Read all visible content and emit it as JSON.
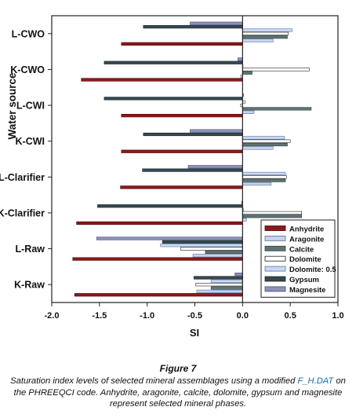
{
  "chart_data": {
    "type": "bar",
    "orientation": "horizontal",
    "categories": [
      "L-CWO",
      "K-CWO",
      "L-CWI",
      "K-CWI",
      "L-Clarifier",
      "K-Clarifier",
      "L-Raw",
      "K-Raw"
    ],
    "series": [
      {
        "name": "Anhydrite",
        "fill": "#8b1a1a",
        "border": "#4a0000",
        "values": [
          -1.27,
          -1.69,
          -1.27,
          -1.27,
          -1.28,
          -1.74,
          -1.78,
          -1.76
        ]
      },
      {
        "name": "Aragonite",
        "fill": "#c6d2ef",
        "border": "#5a6d99",
        "values": [
          0.32,
          -0.02,
          0.12,
          0.32,
          0.3,
          0.04,
          -0.52,
          -0.48
        ]
      },
      {
        "name": "Calcite",
        "fill": "#5f7373",
        "border": "#344545",
        "values": [
          0.47,
          0.1,
          0.72,
          0.47,
          0.45,
          0.62,
          -0.39,
          -0.33
        ]
      },
      {
        "name": "Dolomite",
        "fill": "#ffffff",
        "border": "#222222",
        "values": [
          0.48,
          0.7,
          -0.02,
          0.5,
          0.46,
          0.62,
          -0.65,
          -0.49
        ]
      },
      {
        "name": "Dolomite: 0.5",
        "fill": "#c9d9f2",
        "border": "#5a74a8",
        "values": [
          0.52,
          0.0,
          0.03,
          0.44,
          0.45,
          0.01,
          -0.86,
          -0.33
        ]
      },
      {
        "name": "Gypsum",
        "fill": "#37474f",
        "border": "#1c2a30",
        "values": [
          -1.04,
          -1.45,
          -1.45,
          -1.04,
          -1.05,
          -1.52,
          -0.84,
          -0.51
        ]
      },
      {
        "name": "Magnesite",
        "fill": "#8b91b8",
        "border": "#4a5080",
        "values": [
          -0.55,
          -0.05,
          0.01,
          -0.55,
          -0.57,
          -0.01,
          -1.53,
          -0.08
        ]
      }
    ],
    "x_ticks": [
      "-2.0",
      "-1.5",
      "-1.0",
      "-0.5",
      "0.0",
      "0.5",
      "1.0"
    ],
    "xlim": [
      -2.0,
      1.0
    ],
    "xlabel": "SI",
    "ylabel": "Water source",
    "grid": false,
    "legend_position": "bottom-right"
  },
  "caption": {
    "label": "Figure 7",
    "text_1": "Saturation index levels of selected mineral assemblages using a modified ",
    "file": "F_H.DAT",
    "text_2": " on the PHREEQCI code. Anhydrite, aragonite, calcite, dolomite, gypsum and magnesite represent selected mineral phases."
  }
}
